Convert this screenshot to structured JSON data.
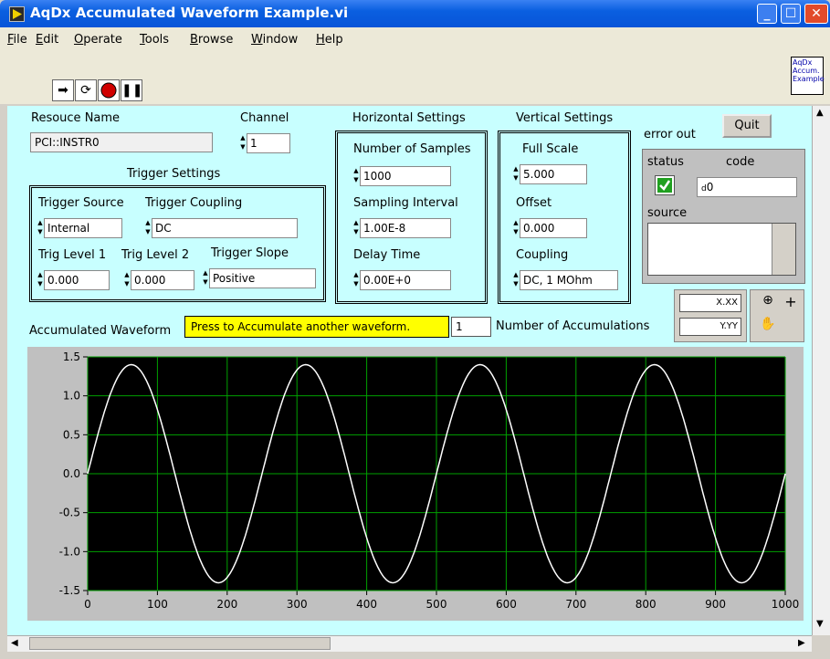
{
  "window": {
    "title": "AqDx Accumulated Waveform Example.vi"
  },
  "menu": [
    "File",
    "Edit",
    "Operate",
    "Tools",
    "Browse",
    "Window",
    "Help"
  ],
  "vi_icon_text": "AqDx Accum. Example",
  "panel": {
    "resource_label": "Resouce Name",
    "resource_value": "PCI::INSTR0",
    "channel_label": "Channel",
    "channel_value": "1",
    "trigger_settings_label": "Trigger Settings",
    "trigger_source_label": "Trigger Source",
    "trigger_source_value": "Internal",
    "trigger_coupling_label": "Trigger Coupling",
    "trigger_coupling_value": "DC",
    "trig_level1_label": "Trig Level 1",
    "trig_level1_value": "0.000",
    "trig_level2_label": "Trig Level 2",
    "trig_level2_value": "0.000",
    "trigger_slope_label": "Trigger Slope",
    "trigger_slope_value": "Positive",
    "horizontal_label": "Horizontal Settings",
    "num_samples_label": "Number of Samples",
    "num_samples_value": "1000",
    "sampling_interval_label": "Sampling Interval",
    "sampling_interval_value": "1.00E-8",
    "delay_time_label": "Delay Time",
    "delay_time_value": "0.00E+0",
    "vertical_label": "Vertical Settings",
    "full_scale_label": "Full Scale",
    "full_scale_value": "5.000",
    "offset_label": "Offset",
    "offset_value": "0.000",
    "coupling_label": "Coupling",
    "coupling_value": "DC, 1 MOhm",
    "error_out_label": "error out",
    "status_label": "status",
    "code_label": "code",
    "code_value": "0",
    "code_prefix": "d",
    "source_label": "source",
    "quit_label": "Quit",
    "accum_button_label": "Press to Accumulate another waveform.",
    "accum_count_value": "1",
    "accum_count_label": "Number of Accumulations",
    "graph_label": "Accumulated Waveform",
    "scale_x_format": "X.XX",
    "scale_y_format": "Y.YY"
  },
  "chart_data": {
    "type": "line",
    "title": "Accumulated Waveform",
    "xlim": [
      0,
      1000
    ],
    "ylim": [
      -1.5,
      1.5
    ],
    "xticks": [
      "0",
      "100",
      "200",
      "300",
      "400",
      "500",
      "600",
      "700",
      "800",
      "900",
      "1000"
    ],
    "yticks": [
      "1.5",
      "1.0",
      "0.5",
      "0.0",
      "-0.5",
      "-1.0",
      "-1.5"
    ],
    "grid": true,
    "series": [
      {
        "amplitude": 1.4,
        "period": 250,
        "phase_offset": 0,
        "color": "#ffffff"
      }
    ]
  },
  "colors": {
    "panel": "#c8ffff",
    "plot_bg": "#000000",
    "grid": "#00a000",
    "highlight": "#ffff00"
  }
}
